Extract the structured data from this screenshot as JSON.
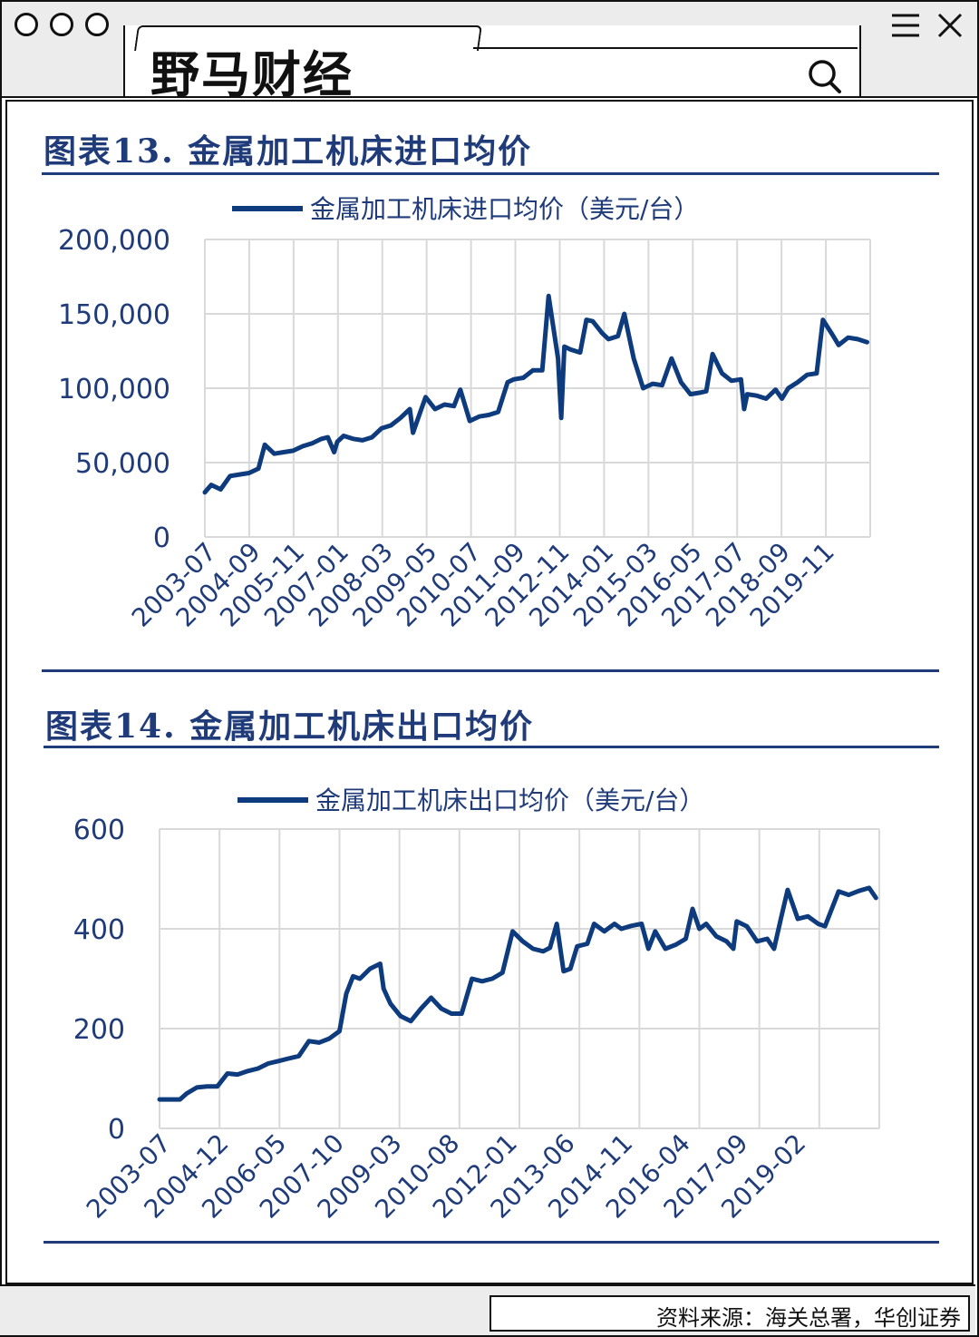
{
  "window": {
    "logo_text": "野马财经",
    "icons": [
      "circle-control-icon",
      "search-icon",
      "menu-icon",
      "close-icon"
    ]
  },
  "source_text": "资料来源：海关总署，华创证券",
  "chart_data": [
    {
      "type": "line",
      "title": "图表13.  金属加工机床进口均价",
      "series": [
        {
          "name": "金属加工机床进口均价（美元/台）",
          "color": "#0d3b7d",
          "points": [
            [
              "2003-07",
              30000
            ],
            [
              "2003-09",
              35000
            ],
            [
              "2003-12",
              32000
            ],
            [
              "2004-03",
              41000
            ],
            [
              "2004-06",
              42000
            ],
            [
              "2004-09",
              43000
            ],
            [
              "2004-12",
              46000
            ],
            [
              "2005-02",
              62000
            ],
            [
              "2005-05",
              56000
            ],
            [
              "2005-08",
              57000
            ],
            [
              "2005-11",
              58000
            ],
            [
              "2006-02",
              61000
            ],
            [
              "2006-05",
              63000
            ],
            [
              "2006-08",
              66000
            ],
            [
              "2006-10",
              67000
            ],
            [
              "2006-12",
              57000
            ],
            [
              "2007-01",
              64000
            ],
            [
              "2007-03",
              68000
            ],
            [
              "2007-06",
              66000
            ],
            [
              "2007-09",
              65000
            ],
            [
              "2007-12",
              67000
            ],
            [
              "2008-03",
              73000
            ],
            [
              "2008-06",
              75000
            ],
            [
              "2008-09",
              80000
            ],
            [
              "2008-12",
              86000
            ],
            [
              "2009-01",
              70000
            ],
            [
              "2009-03",
              82000
            ],
            [
              "2009-05",
              94000
            ],
            [
              "2009-08",
              86000
            ],
            [
              "2009-11",
              89000
            ],
            [
              "2010-02",
              88000
            ],
            [
              "2010-04",
              99000
            ],
            [
              "2010-07",
              78000
            ],
            [
              "2010-10",
              81000
            ],
            [
              "2011-01",
              82000
            ],
            [
              "2011-04",
              84000
            ],
            [
              "2011-07",
              104000
            ],
            [
              "2011-09",
              106000
            ],
            [
              "2011-12",
              107000
            ],
            [
              "2012-03",
              112000
            ],
            [
              "2012-06",
              112000
            ],
            [
              "2012-08",
              162000
            ],
            [
              "2012-11",
              120000
            ],
            [
              "2012-12",
              80000
            ],
            [
              "2013-01",
              128000
            ],
            [
              "2013-03",
              126000
            ],
            [
              "2013-06",
              124000
            ],
            [
              "2013-08",
              146000
            ],
            [
              "2013-10",
              145000
            ],
            [
              "2014-01",
              137000
            ],
            [
              "2014-03",
              133000
            ],
            [
              "2014-06",
              135000
            ],
            [
              "2014-08",
              150000
            ],
            [
              "2014-11",
              120000
            ],
            [
              "2015-02",
              100000
            ],
            [
              "2015-05",
              103000
            ],
            [
              "2015-08",
              102000
            ],
            [
              "2015-11",
              120000
            ],
            [
              "2016-02",
              104000
            ],
            [
              "2016-05",
              96000
            ],
            [
              "2016-08",
              97000
            ],
            [
              "2016-10",
              98000
            ],
            [
              "2016-12",
              123000
            ],
            [
              "2017-03",
              110000
            ],
            [
              "2017-06",
              105000
            ],
            [
              "2017-09",
              106000
            ],
            [
              "2017-10",
              86000
            ],
            [
              "2017-11",
              96000
            ],
            [
              "2018-02",
              95000
            ],
            [
              "2018-05",
              93000
            ],
            [
              "2018-08",
              99000
            ],
            [
              "2018-10",
              93000
            ],
            [
              "2018-12",
              100000
            ],
            [
              "2019-03",
              104000
            ],
            [
              "2019-06",
              109000
            ],
            [
              "2019-09",
              110000
            ],
            [
              "2019-11",
              146000
            ],
            [
              "2020-02",
              136000
            ],
            [
              "2020-04",
              129000
            ],
            [
              "2020-07",
              134000
            ],
            [
              "2020-10",
              133000
            ],
            [
              "2021-01",
              131000
            ]
          ]
        }
      ],
      "x_ticks": [
        "2003-07",
        "2004-09",
        "2005-11",
        "2007-01",
        "2008-03",
        "2009-05",
        "2010-07",
        "2011-09",
        "2012-11",
        "2014-01",
        "2015-03",
        "2016-05",
        "2017-07",
        "2018-09",
        "2019-11"
      ],
      "xlim": [
        "2003-07",
        "2021-02"
      ],
      "y_ticks": [
        "0",
        "50,000",
        "100,000",
        "150,000",
        "200,000"
      ],
      "ylim": [
        0,
        200000
      ],
      "grid": true,
      "legend_position": "top-center"
    },
    {
      "type": "line",
      "title": "图表14.  金属加工机床出口均价",
      "series": [
        {
          "name": "金属加工机床出口均价（美元/台）",
          "color": "#0d3b7d",
          "points": [
            [
              "2003-07",
              58
            ],
            [
              "2003-10",
              58
            ],
            [
              "2004-01",
              58
            ],
            [
              "2004-03",
              70
            ],
            [
              "2004-06",
              82
            ],
            [
              "2004-09",
              84
            ],
            [
              "2004-12",
              84
            ],
            [
              "2005-03",
              110
            ],
            [
              "2005-06",
              108
            ],
            [
              "2005-09",
              115
            ],
            [
              "2005-12",
              120
            ],
            [
              "2006-03",
              130
            ],
            [
              "2006-06",
              135
            ],
            [
              "2006-09",
              140
            ],
            [
              "2006-12",
              145
            ],
            [
              "2007-03",
              175
            ],
            [
              "2007-06",
              172
            ],
            [
              "2007-09",
              180
            ],
            [
              "2007-12",
              195
            ],
            [
              "2008-02",
              270
            ],
            [
              "2008-04",
              305
            ],
            [
              "2008-06",
              300
            ],
            [
              "2008-09",
              320
            ],
            [
              "2008-12",
              330
            ],
            [
              "2009-01",
              280
            ],
            [
              "2009-03",
              250
            ],
            [
              "2009-06",
              225
            ],
            [
              "2009-09",
              215
            ],
            [
              "2009-12",
              240
            ],
            [
              "2010-03",
              262
            ],
            [
              "2010-06",
              240
            ],
            [
              "2010-09",
              230
            ],
            [
              "2010-12",
              230
            ],
            [
              "2011-03",
              300
            ],
            [
              "2011-06",
              295
            ],
            [
              "2011-09",
              300
            ],
            [
              "2011-12",
              312
            ],
            [
              "2012-03",
              395
            ],
            [
              "2012-06",
              375
            ],
            [
              "2012-09",
              360
            ],
            [
              "2012-12",
              355
            ],
            [
              "2013-02",
              362
            ],
            [
              "2013-04",
              410
            ],
            [
              "2013-06",
              315
            ],
            [
              "2013-08",
              320
            ],
            [
              "2013-10",
              365
            ],
            [
              "2014-01",
              370
            ],
            [
              "2014-03",
              410
            ],
            [
              "2014-06",
              395
            ],
            [
              "2014-09",
              410
            ],
            [
              "2014-11",
              400
            ],
            [
              "2015-02",
              406
            ],
            [
              "2015-05",
              410
            ],
            [
              "2015-07",
              360
            ],
            [
              "2015-09",
              395
            ],
            [
              "2015-12",
              360
            ],
            [
              "2016-03",
              368
            ],
            [
              "2016-06",
              380
            ],
            [
              "2016-08",
              440
            ],
            [
              "2016-10",
              400
            ],
            [
              "2016-12",
              410
            ],
            [
              "2017-03",
              385
            ],
            [
              "2017-06",
              375
            ],
            [
              "2017-08",
              360
            ],
            [
              "2017-09",
              415
            ],
            [
              "2017-12",
              405
            ],
            [
              "2018-03",
              375
            ],
            [
              "2018-06",
              380
            ],
            [
              "2018-08",
              360
            ],
            [
              "2018-10",
              420
            ],
            [
              "2018-12",
              478
            ],
            [
              "2019-03",
              420
            ],
            [
              "2019-06",
              425
            ],
            [
              "2019-09",
              410
            ],
            [
              "2019-11",
              405
            ],
            [
              "2020-03",
              475
            ],
            [
              "2020-06",
              468
            ],
            [
              "2020-09",
              476
            ],
            [
              "2020-12",
              482
            ],
            [
              "2021-02",
              462
            ]
          ]
        }
      ],
      "x_ticks": [
        "2003-07",
        "2004-12",
        "2006-05",
        "2007-10",
        "2009-03",
        "2010-08",
        "2012-01",
        "2013-06",
        "2014-11",
        "2016-04",
        "2017-09",
        "2019-02"
      ],
      "xlim": [
        "2003-07",
        "2021-03"
      ],
      "y_ticks": [
        "0",
        "200",
        "400",
        "600"
      ],
      "ylim": [
        0,
        600
      ],
      "grid": true,
      "legend_position": "top-center"
    }
  ]
}
